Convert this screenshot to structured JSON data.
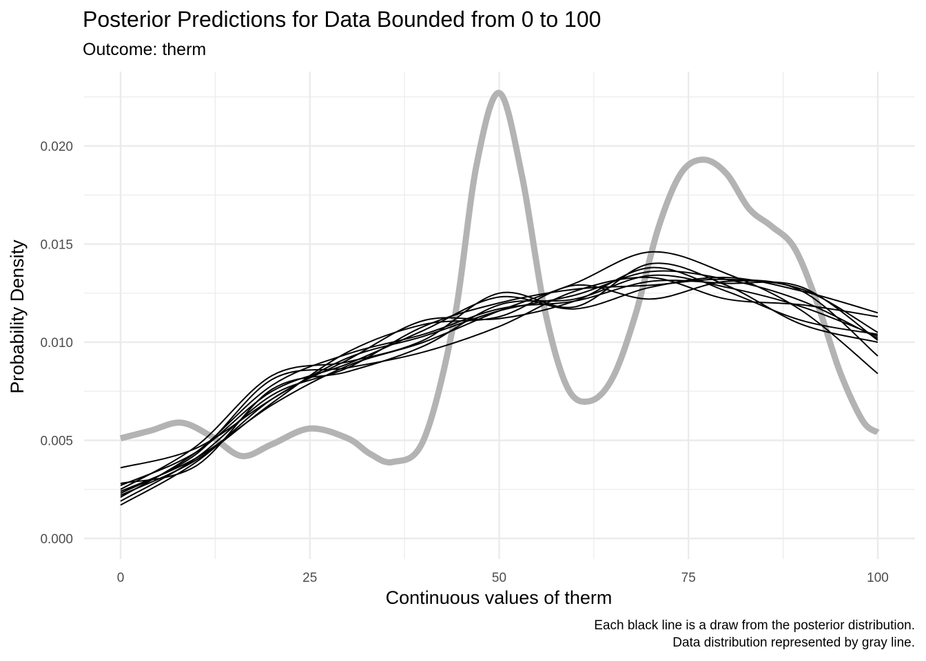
{
  "chart_data": {
    "type": "line",
    "title": "Posterior Predictions for Data Bounded from 0 to 100",
    "subtitle": "Outcome: therm",
    "xlabel": "Continuous values of therm",
    "ylabel": "Probability Density",
    "caption_lines": [
      "Each black line is a draw from the posterior distribution.",
      "Data distribution represented by gray line."
    ],
    "xlim": [
      0,
      100
    ],
    "ylim": [
      0,
      0.0225
    ],
    "x_ticks": [
      0,
      25,
      50,
      75,
      100
    ],
    "x_tick_labels": [
      "0",
      "25",
      "50",
      "75",
      "100"
    ],
    "y_ticks": [
      0,
      0.005,
      0.01,
      0.015,
      0.02
    ],
    "y_tick_labels": [
      "0.000",
      "0.005",
      "0.010",
      "0.015",
      "0.020"
    ],
    "grid": true,
    "colors": {
      "observed": "#b3b3b3",
      "draws": "#000000",
      "grid": "#ebebeb"
    },
    "observed": {
      "x": [
        0,
        4,
        8,
        12,
        16,
        20,
        25,
        30,
        33,
        36,
        40,
        44,
        47,
        50,
        53,
        56,
        59,
        62,
        65,
        68,
        71,
        74,
        77,
        80,
        83,
        86,
        89,
        92,
        95,
        98,
        100
      ],
      "y": [
        0.0051,
        0.0055,
        0.0059,
        0.0052,
        0.0042,
        0.0048,
        0.0056,
        0.0051,
        0.0043,
        0.0039,
        0.005,
        0.011,
        0.019,
        0.0227,
        0.0185,
        0.0117,
        0.0077,
        0.007,
        0.0082,
        0.0114,
        0.0158,
        0.0186,
        0.0193,
        0.0186,
        0.0168,
        0.0159,
        0.0148,
        0.012,
        0.0085,
        0.006,
        0.0054
      ]
    },
    "draws": {
      "x": [
        0,
        10,
        20,
        30,
        40,
        50,
        60,
        70,
        80,
        90,
        100
      ],
      "series": [
        {
          "y": [
            0.0036,
            0.0046,
            0.0071,
            0.0092,
            0.0103,
            0.0116,
            0.0124,
            0.0136,
            0.0132,
            0.0121,
            0.0102
          ]
        },
        {
          "y": [
            0.0027,
            0.0044,
            0.0075,
            0.0089,
            0.0106,
            0.0123,
            0.0117,
            0.0128,
            0.0133,
            0.0126,
            0.0115
          ]
        },
        {
          "y": [
            0.0024,
            0.0041,
            0.0068,
            0.0088,
            0.01,
            0.0116,
            0.013,
            0.0146,
            0.0135,
            0.0116,
            0.0084
          ]
        },
        {
          "y": [
            0.0021,
            0.0044,
            0.0078,
            0.0094,
            0.0104,
            0.0117,
            0.0121,
            0.0131,
            0.013,
            0.0128,
            0.0101
          ]
        },
        {
          "y": [
            0.0019,
            0.0041,
            0.0073,
            0.0087,
            0.0108,
            0.012,
            0.0127,
            0.0129,
            0.0132,
            0.0126,
            0.0093
          ]
        },
        {
          "y": [
            0.0017,
            0.0039,
            0.0071,
            0.0091,
            0.0111,
            0.0112,
            0.0121,
            0.0138,
            0.0126,
            0.0111,
            0.0104
          ]
        },
        {
          "y": [
            0.0023,
            0.0043,
            0.0081,
            0.0087,
            0.0095,
            0.0108,
            0.0126,
            0.0133,
            0.0122,
            0.0119,
            0.0113
          ]
        },
        {
          "y": [
            0.0025,
            0.0047,
            0.0083,
            0.009,
            0.0101,
            0.0125,
            0.0118,
            0.014,
            0.0129,
            0.0109,
            0.01
          ]
        },
        {
          "y": [
            0.0022,
            0.004,
            0.0069,
            0.0095,
            0.0109,
            0.0113,
            0.0129,
            0.0122,
            0.0131,
            0.0127,
            0.0105
          ]
        },
        {
          "y": [
            0.0028,
            0.0037,
            0.0076,
            0.0085,
            0.0098,
            0.0119,
            0.0122,
            0.0134,
            0.0128,
            0.0118,
            0.0103
          ]
        }
      ]
    }
  }
}
